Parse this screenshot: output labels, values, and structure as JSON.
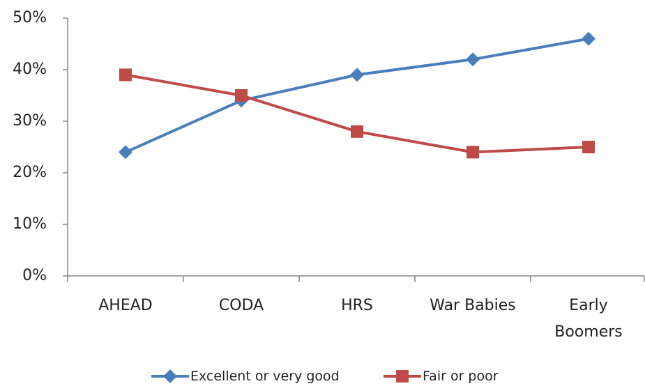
{
  "chart_data": {
    "type": "line",
    "categories": [
      "AHEAD",
      "CODA",
      "HRS",
      "War Babies",
      "Early Boomers"
    ],
    "series": [
      {
        "name": "Excellent or very good",
        "color": "#4a7ebb",
        "marker": "diamond",
        "values": [
          24,
          34,
          39,
          42,
          46
        ]
      },
      {
        "name": "Fair or poor",
        "color": "#be4b48",
        "marker": "square",
        "values": [
          39,
          35,
          28,
          24,
          25
        ]
      }
    ],
    "ylim": [
      0,
      50
    ],
    "yticks": [
      {
        "value": 0,
        "label": "0%"
      },
      {
        "value": 10,
        "label": "10%"
      },
      {
        "value": 20,
        "label": "20%"
      },
      {
        "value": 30,
        "label": "30%"
      },
      {
        "value": 40,
        "label": "40%"
      },
      {
        "value": 50,
        "label": "50%"
      }
    ],
    "grid": false,
    "legend": "bottom"
  }
}
